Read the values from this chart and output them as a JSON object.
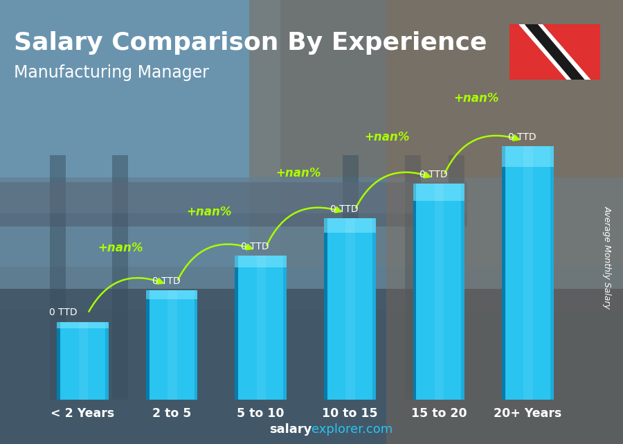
{
  "title": "Salary Comparison By Experience",
  "subtitle": "Manufacturing Manager",
  "ylabel": "Average Monthly Salary",
  "categories": [
    "< 2 Years",
    "2 to 5",
    "5 to 10",
    "10 to 15",
    "15 to 20",
    "20+ Years"
  ],
  "bar_heights_norm": [
    0.27,
    0.38,
    0.5,
    0.63,
    0.75,
    0.88
  ],
  "bar_color_main": "#29c4f0",
  "bar_color_light": "#55ddf7",
  "bar_color_dark": "#0a8bbf",
  "bar_color_darker": "#0070a0",
  "bar_color_top": "#80e8ff",
  "bg_top": "#6a9ab8",
  "bg_bottom": "#4a5a6a",
  "bg_mid": "#7a8a7a",
  "title_color": "#ffffff",
  "subtitle_color": "#ffffff",
  "value_label": "0 TTD",
  "pct_label": "+nan%",
  "pct_color": "#aaff00",
  "value_color": "#ffffff",
  "arrow_color": "#aaff00",
  "ylabel_color": "#ffffff",
  "watermark_salary_color": "#ffffff",
  "watermark_explorer_color": "#29c4f0",
  "title_fontsize": 26,
  "subtitle_fontsize": 17,
  "bar_width": 0.58,
  "xlim": [
    -0.65,
    5.65
  ],
  "ylim": [
    0,
    1.08
  ],
  "figsize": [
    9.0,
    6.41
  ]
}
